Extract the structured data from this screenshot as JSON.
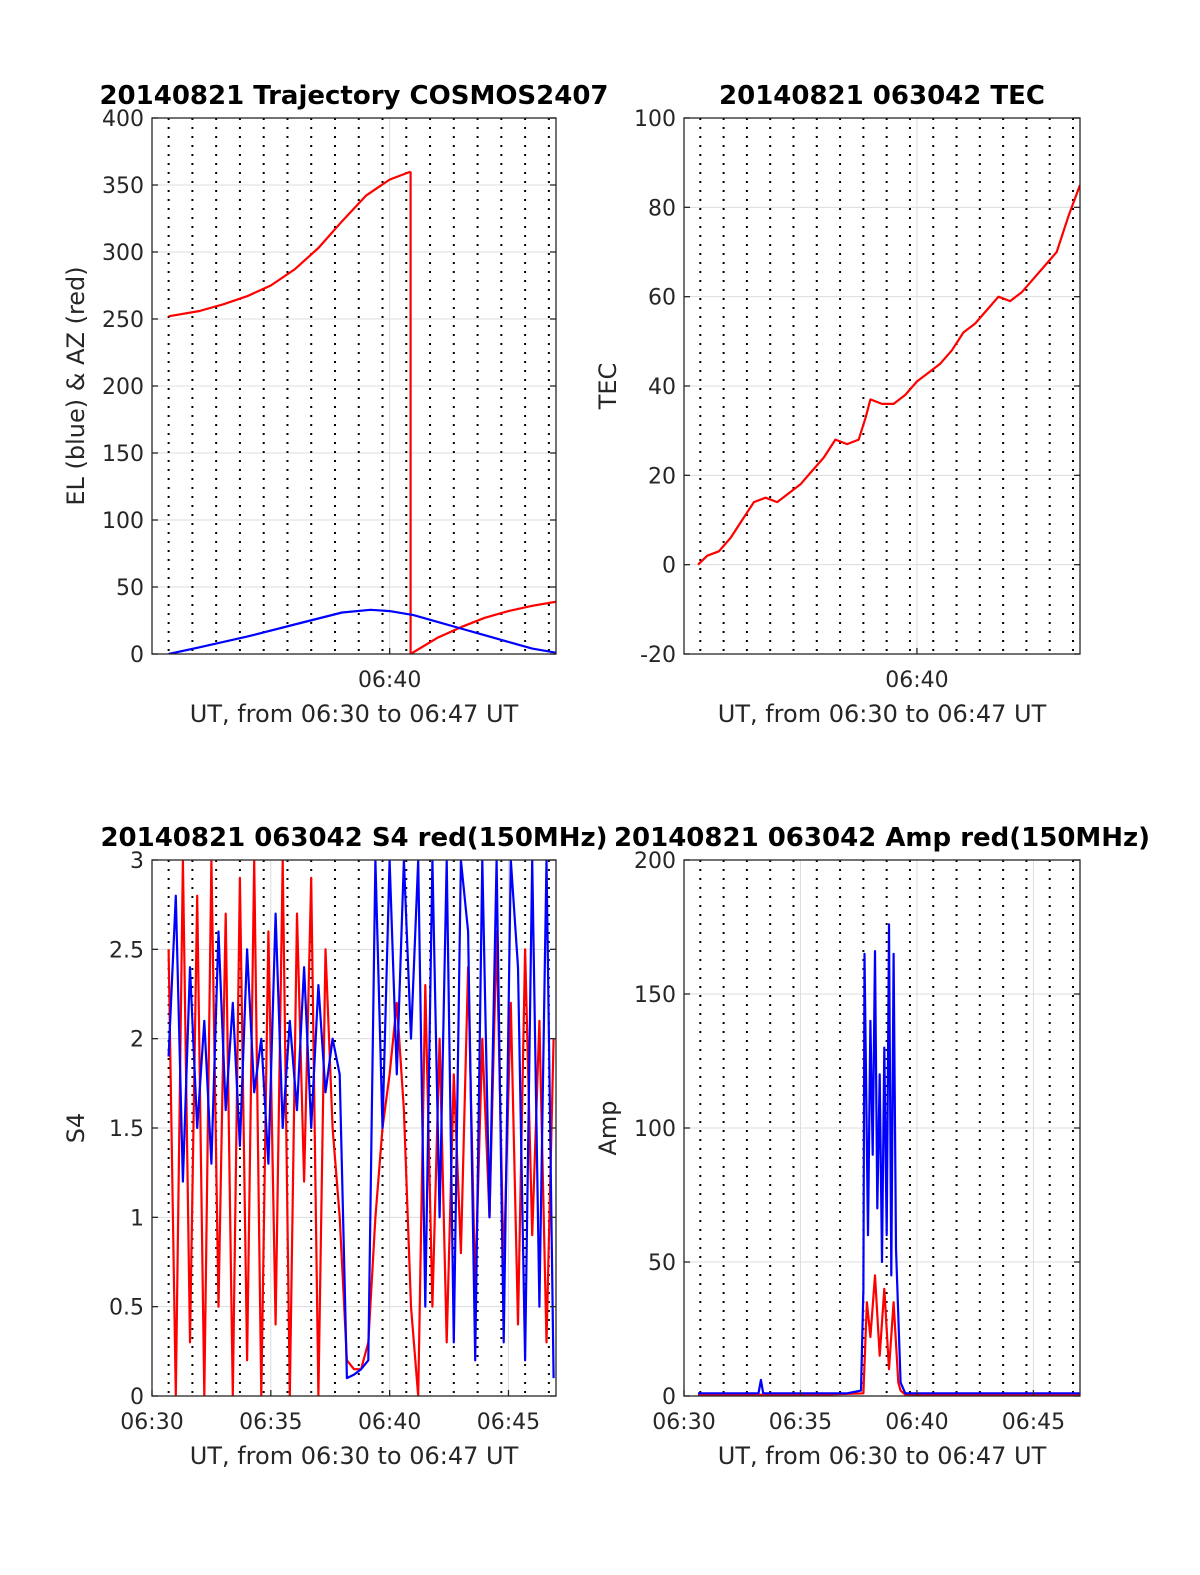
{
  "figure": {
    "charts": [
      {
        "id": "trajectory",
        "type": "line",
        "title": "20140821 Trajectory COSMOS2407",
        "xlabel": "UT, from 06:30 to 06:47 UT",
        "ylabel": "EL (blue) & AZ (red)",
        "xlim": [
          0,
          17
        ],
        "ylim": [
          0,
          400
        ],
        "yticks": [
          0,
          50,
          100,
          150,
          200,
          250,
          300,
          350,
          400
        ],
        "ytick_labels": [
          "0",
          "50",
          "100",
          "150",
          "200",
          "250",
          "300",
          "350",
          "400"
        ],
        "xticks": [
          10
        ],
        "xtick_labels": [
          "06:40"
        ],
        "dotted_grid_x": [
          0.7,
          1.7,
          2.7,
          3.7,
          4.7,
          5.7,
          6.7,
          7.7,
          8.7,
          9.7,
          10.7,
          11.7,
          12.7,
          13.7,
          14.7,
          15.7,
          16.7
        ],
        "grid": true,
        "series": [
          {
            "color": "#ff0000",
            "x": [
              0.7,
              2,
              3,
              4,
              5,
              6,
              7,
              8,
              9,
              10,
              10.88
            ],
            "y": [
              252,
              256,
              261,
              267,
              275,
              287,
              303,
              323,
              342,
              354,
              360
            ]
          },
          {
            "color": "#ff0000",
            "x": [
              10.88,
              10.88,
              12,
              13,
              14,
              15,
              16,
              17
            ],
            "y": [
              360,
              0,
              12,
              20,
              27,
              32,
              36,
              39
            ]
          },
          {
            "color": "#0000ff",
            "x": [
              0.7,
              2,
              4,
              6,
              8,
              9.2,
              10,
              11,
              12,
              13,
              14,
              15,
              16,
              17
            ],
            "y": [
              0,
              5,
              13,
              22,
              31,
              33,
              32,
              29,
              24,
              19,
              14,
              9,
              4,
              1
            ]
          }
        ]
      },
      {
        "id": "tec",
        "type": "line",
        "title": "20140821 063042 TEC",
        "xlabel": "UT, from 06:30 to 06:47 UT",
        "ylabel": "TEC",
        "xlim": [
          0,
          17
        ],
        "ylim": [
          -20,
          100
        ],
        "yticks": [
          -20,
          0,
          20,
          40,
          60,
          80,
          100
        ],
        "ytick_labels": [
          "-20",
          "0",
          "20",
          "40",
          "60",
          "80",
          "100"
        ],
        "xticks": [
          10
        ],
        "xtick_labels": [
          "06:40"
        ],
        "dotted_grid_x": [
          0.7,
          1.7,
          2.7,
          3.7,
          4.7,
          5.7,
          6.7,
          7.7,
          8.7,
          9.7,
          10.7,
          11.7,
          12.7,
          13.7,
          14.7,
          15.7,
          16.7
        ],
        "grid": true,
        "series": [
          {
            "color": "#ff0000",
            "x": [
              0.6,
              1,
              1.5,
              2,
              2.5,
              3,
              3.5,
              4,
              4.5,
              5,
              5.5,
              6,
              6.5,
              7,
              7.5,
              7.8,
              8,
              8.5,
              9,
              9.5,
              10,
              10.5,
              11,
              11.5,
              12,
              12.5,
              13,
              13.5,
              14,
              14.5,
              15,
              15.5,
              16,
              16.5,
              17
            ],
            "y": [
              0,
              2,
              3,
              6,
              10,
              14,
              15,
              14,
              16,
              18,
              21,
              24,
              28,
              27,
              28,
              33,
              37,
              36,
              36,
              38,
              41,
              43,
              45,
              48,
              52,
              54,
              57,
              60,
              59,
              61,
              64,
              67,
              70,
              78,
              85
            ]
          }
        ]
      },
      {
        "id": "s4",
        "type": "line",
        "title": "20140821 063042 S4 red(150MHz)",
        "xlabel": "UT, from 06:30 to 06:47 UT",
        "ylabel": "S4",
        "xlim": [
          0,
          17
        ],
        "ylim": [
          0,
          3
        ],
        "yticks": [
          0,
          0.5,
          1,
          1.5,
          2,
          2.5,
          3
        ],
        "ytick_labels": [
          "0",
          "0.5",
          "1",
          "1.5",
          "2",
          "2.5",
          "3"
        ],
        "xticks": [
          0,
          5,
          10,
          15
        ],
        "xtick_labels": [
          "06:30",
          "06:35",
          "06:40",
          "06:45"
        ],
        "dotted_grid_x": [
          0.7,
          1.7,
          2.7,
          3.7,
          4.7,
          5.7,
          6.7,
          7.7,
          8.7,
          9.7,
          10.7,
          11.7,
          12.7,
          13.7,
          14.7,
          15.7,
          16.7
        ],
        "grid": true,
        "series": [
          {
            "color": "#ff0000",
            "x": [
              0.7,
              1.0,
              1.3,
              1.6,
              1.9,
              2.2,
              2.5,
              2.8,
              3.1,
              3.4,
              3.7,
              4.0,
              4.3,
              4.6,
              4.9,
              5.2,
              5.5,
              5.8,
              6.1,
              6.4,
              6.7,
              7.0,
              7.3,
              7.6,
              7.9,
              8.2,
              8.5,
              8.8,
              9.1,
              9.4,
              9.7,
              10.0,
              10.3,
              10.6,
              10.9,
              11.2,
              11.5,
              11.8,
              12.1,
              12.4,
              12.7,
              13.0,
              13.3,
              13.6,
              13.9,
              14.2,
              14.5,
              14.8,
              15.1,
              15.4,
              15.7,
              16.0,
              16.3,
              16.6,
              16.9
            ],
            "y": [
              2.5,
              0.0,
              3.0,
              0.3,
              2.8,
              0.0,
              3.0,
              0.5,
              2.7,
              0.0,
              2.9,
              0.2,
              3.0,
              0.0,
              2.6,
              0.4,
              3.0,
              0.0,
              2.7,
              1.2,
              2.9,
              0.0,
              2.5,
              1.5,
              1.0,
              0.2,
              0.15,
              0.15,
              0.3,
              1.0,
              1.5,
              1.8,
              2.2,
              1.6,
              0.5,
              0.0,
              2.3,
              0.5,
              2.0,
              0.3,
              1.8,
              0.8,
              2.4,
              0.6,
              2.0,
              1.0,
              2.6,
              0.7,
              2.2,
              0.4,
              2.5,
              0.9,
              2.1,
              0.3,
              2.0
            ]
          },
          {
            "color": "#0000ff",
            "x": [
              0.7,
              1.0,
              1.3,
              1.6,
              1.9,
              2.2,
              2.5,
              2.8,
              3.1,
              3.4,
              3.7,
              4.0,
              4.3,
              4.6,
              4.9,
              5.2,
              5.5,
              5.8,
              6.1,
              6.4,
              6.7,
              7.0,
              7.3,
              7.6,
              7.9,
              8.2,
              8.5,
              8.8,
              9.1,
              9.4,
              9.7,
              10.0,
              10.3,
              10.6,
              10.9,
              11.2,
              11.5,
              11.8,
              12.1,
              12.4,
              12.7,
              13.0,
              13.3,
              13.6,
              13.9,
              14.2,
              14.5,
              14.8,
              15.1,
              15.4,
              15.7,
              16.0,
              16.3,
              16.6,
              16.9
            ],
            "y": [
              1.9,
              2.8,
              1.2,
              2.4,
              1.5,
              2.1,
              1.3,
              2.6,
              1.6,
              2.2,
              1.4,
              2.5,
              1.7,
              2.0,
              1.3,
              2.7,
              1.5,
              2.1,
              1.6,
              2.4,
              1.5,
              2.3,
              1.7,
              2.0,
              1.8,
              0.1,
              0.12,
              0.15,
              0.2,
              3.0,
              1.5,
              3.0,
              1.8,
              3.0,
              2.0,
              3.0,
              0.5,
              3.0,
              1.0,
              3.0,
              0.3,
              3.0,
              2.6,
              0.2,
              3.0,
              1.0,
              3.0,
              0.3,
              3.0,
              2.4,
              0.2,
              3.0,
              0.5,
              3.0,
              0.1
            ]
          }
        ]
      },
      {
        "id": "amp",
        "type": "line",
        "title": "20140821 063042 Amp red(150MHz)",
        "xlabel": "UT, from 06:30 to 06:47 UT",
        "ylabel": "Amp",
        "xlim": [
          0,
          17
        ],
        "ylim": [
          0,
          200
        ],
        "yticks": [
          0,
          50,
          100,
          150,
          200
        ],
        "ytick_labels": [
          "0",
          "50",
          "100",
          "150",
          "200"
        ],
        "xticks": [
          0,
          5,
          10,
          15
        ],
        "xtick_labels": [
          "06:30",
          "06:35",
          "06:40",
          "06:45"
        ],
        "dotted_grid_x": [
          0.7,
          1.7,
          2.7,
          3.7,
          4.7,
          5.7,
          6.7,
          7.7,
          8.7,
          9.7,
          10.7,
          11.7,
          12.7,
          13.7,
          14.7,
          15.7,
          16.7
        ],
        "grid": true,
        "series": [
          {
            "color": "#ff0000",
            "x": [
              0.6,
              3,
              6,
              7.7,
              7.85,
              8.0,
              8.2,
              8.4,
              8.6,
              8.8,
              9.0,
              9.2,
              9.3,
              9.5,
              12,
              15,
              17
            ],
            "y": [
              0.5,
              0.5,
              0.5,
              1,
              35,
              22,
              45,
              15,
              40,
              10,
              35,
              5,
              2,
              0.5,
              0.5,
              0.5,
              0.5
            ]
          },
          {
            "color": "#0000ff",
            "x": [
              0.6,
              2,
              3.2,
              3.3,
              3.4,
              5,
              7,
              7.6,
              7.7,
              7.75,
              7.9,
              8.0,
              8.1,
              8.2,
              8.3,
              8.4,
              8.5,
              8.6,
              8.7,
              8.8,
              8.9,
              9.0,
              9.1,
              9.2,
              9.3,
              9.5,
              11,
              13,
              15,
              17
            ],
            "y": [
              1,
              1,
              1,
              6,
              1,
              1,
              1,
              2,
              40,
              165,
              60,
              140,
              90,
              166,
              70,
              120,
              50,
              130,
              60,
              176,
              45,
              165,
              55,
              30,
              5,
              1,
              1,
              1,
              1,
              1
            ]
          }
        ]
      }
    ]
  }
}
